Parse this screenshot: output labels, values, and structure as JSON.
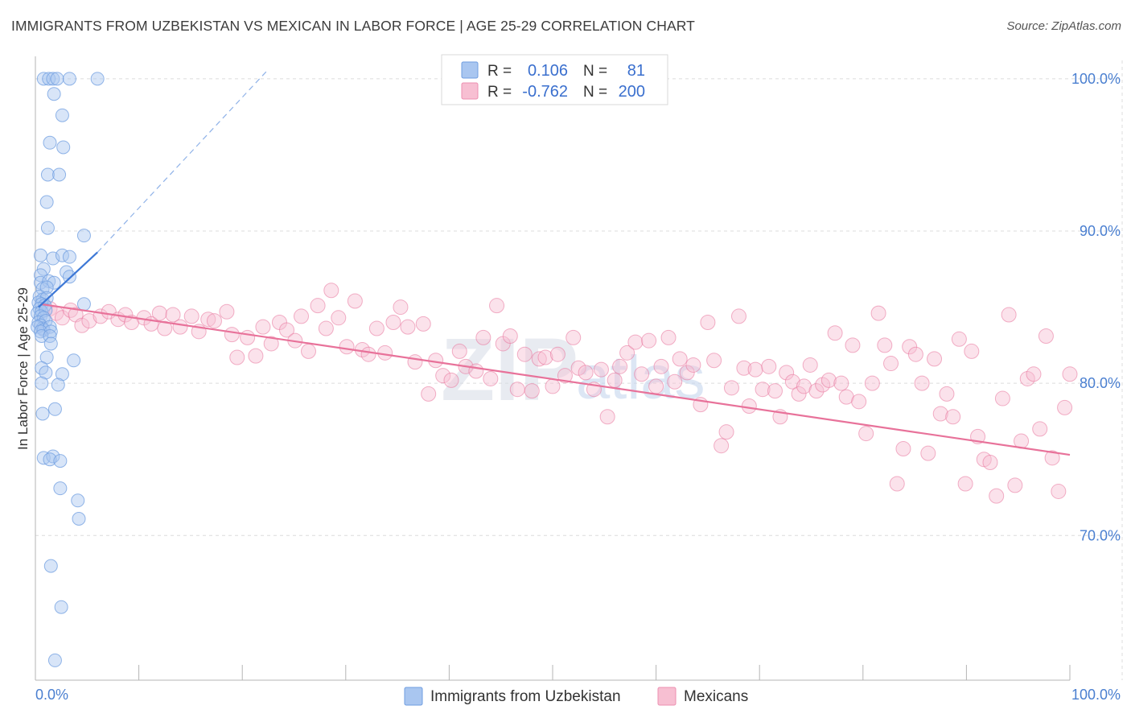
{
  "title": "IMMIGRANTS FROM UZBEKISTAN VS MEXICAN IN LABOR FORCE | AGE 25-29 CORRELATION CHART",
  "source": "Source: ZipAtlas.com",
  "watermark": {
    "zip": "ZIP",
    "atlas": "atlas"
  },
  "legend_top": {
    "rows": [
      {
        "r_label": "R =",
        "r_value": "0.106",
        "n_label": "N =",
        "n_value": "81",
        "color": "#a9c6f0",
        "stroke": "#6f9de0"
      },
      {
        "r_label": "R =",
        "r_value": "-0.762",
        "n_label": "N =",
        "n_value": "200",
        "color": "#f7bfd2",
        "stroke": "#ec8fb0"
      }
    ]
  },
  "legend_bottom": {
    "items": [
      {
        "label": "Immigrants from Uzbekistan",
        "color": "#a9c6f0",
        "stroke": "#6f9de0"
      },
      {
        "label": "Mexicans",
        "color": "#f7bfd2",
        "stroke": "#ec8fb0"
      }
    ]
  },
  "chart_data": {
    "type": "scatter",
    "title": "IMMIGRANTS FROM UZBEKISTAN VS MEXICAN IN LABOR FORCE | AGE 25-29 CORRELATION CHART",
    "xlabel": "",
    "ylabel": "In Labor Force | Age 25-29",
    "xlim": [
      0,
      100
    ],
    "ylim": [
      60.5,
      102
    ],
    "x_tick_labels": [
      "0.0%",
      "100.0%"
    ],
    "y_ticks": [
      70,
      80,
      90,
      100
    ],
    "y_tick_labels": [
      "70.0%",
      "80.0%",
      "90.0%",
      "100.0%"
    ],
    "grid": true,
    "series": [
      {
        "name": "Immigrants from Uzbekistan",
        "color": "#6f9de0",
        "fill": "#a9c6f0",
        "trend": {
          "x": [
            0.3,
            6.0
          ],
          "y": [
            85.0,
            88.6
          ]
        },
        "trend_extension": {
          "x": [
            6.0,
            22.5
          ],
          "y": [
            88.6,
            100.6
          ]
        },
        "points": [
          [
            0.8,
            100
          ],
          [
            1.3,
            100
          ],
          [
            1.7,
            100
          ],
          [
            2.1,
            100
          ],
          [
            3.3,
            100
          ],
          [
            6.0,
            100
          ],
          [
            1.8,
            99
          ],
          [
            2.6,
            97.6
          ],
          [
            1.4,
            95.8
          ],
          [
            2.7,
            95.5
          ],
          [
            1.2,
            93.7
          ],
          [
            2.3,
            93.7
          ],
          [
            1.1,
            91.9
          ],
          [
            1.2,
            90.2
          ],
          [
            4.7,
            89.7
          ],
          [
            0.5,
            88.4
          ],
          [
            1.7,
            88.2
          ],
          [
            2.6,
            88.4
          ],
          [
            3.3,
            88.3
          ],
          [
            0.8,
            87.5
          ],
          [
            0.5,
            87.1
          ],
          [
            3.0,
            87.3
          ],
          [
            3.3,
            87.0
          ],
          [
            0.5,
            86.6
          ],
          [
            1.3,
            86.7
          ],
          [
            1.8,
            86.6
          ],
          [
            0.7,
            86.2
          ],
          [
            1.1,
            86.3
          ],
          [
            0.4,
            85.7
          ],
          [
            0.7,
            85.5
          ],
          [
            1.1,
            85.6
          ],
          [
            0.3,
            85.3
          ],
          [
            0.6,
            85.2
          ],
          [
            0.9,
            85.1
          ],
          [
            0.4,
            84.9
          ],
          [
            0.2,
            84.6
          ],
          [
            0.6,
            84.7
          ],
          [
            1.0,
            84.8
          ],
          [
            4.7,
            85.2
          ],
          [
            0.5,
            84.4
          ],
          [
            0.8,
            84.3
          ],
          [
            0.3,
            84.0
          ],
          [
            1.0,
            84.1
          ],
          [
            0.5,
            83.8
          ],
          [
            0.7,
            83.6
          ],
          [
            0.2,
            83.7
          ],
          [
            0.8,
            83.5
          ],
          [
            1.4,
            83.7
          ],
          [
            0.5,
            83.4
          ],
          [
            1.5,
            83.4
          ],
          [
            0.6,
            83.1
          ],
          [
            1.4,
            83.1
          ],
          [
            1.5,
            82.6
          ],
          [
            1.1,
            81.7
          ],
          [
            3.7,
            81.5
          ],
          [
            0.6,
            81.0
          ],
          [
            1.0,
            80.7
          ],
          [
            2.6,
            80.6
          ],
          [
            0.6,
            80.0
          ],
          [
            2.2,
            79.9
          ],
          [
            1.9,
            78.3
          ],
          [
            0.7,
            78.0
          ],
          [
            0.8,
            75.1
          ],
          [
            1.7,
            75.2
          ],
          [
            1.4,
            75.0
          ],
          [
            2.4,
            74.9
          ],
          [
            2.4,
            73.1
          ],
          [
            4.1,
            72.3
          ],
          [
            4.2,
            71.1
          ],
          [
            1.5,
            68.0
          ],
          [
            2.5,
            65.3
          ],
          [
            1.9,
            61.8
          ]
        ]
      },
      {
        "name": "Mexicans",
        "color": "#e8729a",
        "fill": "#f7bfd2",
        "trend": {
          "x": [
            0.5,
            100
          ],
          "y": [
            85.2,
            75.3
          ]
        },
        "points": [
          [
            1.4,
            84.9
          ],
          [
            2.0,
            84.6
          ],
          [
            2.6,
            84.3
          ],
          [
            3.4,
            84.8
          ],
          [
            3.9,
            84.5
          ],
          [
            4.5,
            83.8
          ],
          [
            5.2,
            84.1
          ],
          [
            6.3,
            84.4
          ],
          [
            7.1,
            84.7
          ],
          [
            8.0,
            84.2
          ],
          [
            8.7,
            84.5
          ],
          [
            9.3,
            84.0
          ],
          [
            10.5,
            84.3
          ],
          [
            11.2,
            83.9
          ],
          [
            12.0,
            84.6
          ],
          [
            12.5,
            83.6
          ],
          [
            13.3,
            84.5
          ],
          [
            14.0,
            83.7
          ],
          [
            15.1,
            84.4
          ],
          [
            15.8,
            83.4
          ],
          [
            16.7,
            84.2
          ],
          [
            17.3,
            84.1
          ],
          [
            18.5,
            84.7
          ],
          [
            19.0,
            83.2
          ],
          [
            19.5,
            81.7
          ],
          [
            20.5,
            83.0
          ],
          [
            21.3,
            81.8
          ],
          [
            22.0,
            83.7
          ],
          [
            22.8,
            82.6
          ],
          [
            23.6,
            84.0
          ],
          [
            24.3,
            83.5
          ],
          [
            25.1,
            82.8
          ],
          [
            25.7,
            84.4
          ],
          [
            26.4,
            82.1
          ],
          [
            27.3,
            85.1
          ],
          [
            28.1,
            83.6
          ],
          [
            28.6,
            86.1
          ],
          [
            29.3,
            84.3
          ],
          [
            30.1,
            82.4
          ],
          [
            30.9,
            85.4
          ],
          [
            31.6,
            82.2
          ],
          [
            32.2,
            81.9
          ],
          [
            33.0,
            83.6
          ],
          [
            33.8,
            82.0
          ],
          [
            34.6,
            84.0
          ],
          [
            35.3,
            85.0
          ],
          [
            36.0,
            83.7
          ],
          [
            36.7,
            81.4
          ],
          [
            37.5,
            83.9
          ],
          [
            38.0,
            79.3
          ],
          [
            38.7,
            81.5
          ],
          [
            39.4,
            80.5
          ],
          [
            40.2,
            80.2
          ],
          [
            41.0,
            82.1
          ],
          [
            41.6,
            81.1
          ],
          [
            42.6,
            80.8
          ],
          [
            43.3,
            83.0
          ],
          [
            44.0,
            80.3
          ],
          [
            44.6,
            85.1
          ],
          [
            45.2,
            82.6
          ],
          [
            45.9,
            83.1
          ],
          [
            46.6,
            79.6
          ],
          [
            47.3,
            81.9
          ],
          [
            48.0,
            79.5
          ],
          [
            48.7,
            81.6
          ],
          [
            49.3,
            81.7
          ],
          [
            50.0,
            79.8
          ],
          [
            50.5,
            81.9
          ],
          [
            51.2,
            80.5
          ],
          [
            52.0,
            83.0
          ],
          [
            52.5,
            81.0
          ],
          [
            53.2,
            80.7
          ],
          [
            54.0,
            79.6
          ],
          [
            54.7,
            80.9
          ],
          [
            55.3,
            77.8
          ],
          [
            56.0,
            80.2
          ],
          [
            56.5,
            81.1
          ],
          [
            57.2,
            82.0
          ],
          [
            58.0,
            82.7
          ],
          [
            58.6,
            80.6
          ],
          [
            59.3,
            82.8
          ],
          [
            60.0,
            79.8
          ],
          [
            60.5,
            81.1
          ],
          [
            61.2,
            83.0
          ],
          [
            61.8,
            80.1
          ],
          [
            62.3,
            81.6
          ],
          [
            63.0,
            80.7
          ],
          [
            63.6,
            81.2
          ],
          [
            64.3,
            78.6
          ],
          [
            65.0,
            84.0
          ],
          [
            65.6,
            81.5
          ],
          [
            66.3,
            75.9
          ],
          [
            66.8,
            76.8
          ],
          [
            67.3,
            79.7
          ],
          [
            68.0,
            84.4
          ],
          [
            68.5,
            81.0
          ],
          [
            69.0,
            78.5
          ],
          [
            69.6,
            80.9
          ],
          [
            70.3,
            79.6
          ],
          [
            70.9,
            81.1
          ],
          [
            71.5,
            79.5
          ],
          [
            72.0,
            77.8
          ],
          [
            72.6,
            80.7
          ],
          [
            73.2,
            80.1
          ],
          [
            73.8,
            79.3
          ],
          [
            74.3,
            79.8
          ],
          [
            74.9,
            81.2
          ],
          [
            75.5,
            79.5
          ],
          [
            76.1,
            79.9
          ],
          [
            76.7,
            80.2
          ],
          [
            77.3,
            83.3
          ],
          [
            77.9,
            80.0
          ],
          [
            78.4,
            79.1
          ],
          [
            79.0,
            82.5
          ],
          [
            79.6,
            78.8
          ],
          [
            80.3,
            76.7
          ],
          [
            80.9,
            80.0
          ],
          [
            81.5,
            84.6
          ],
          [
            82.1,
            82.5
          ],
          [
            82.7,
            81.3
          ],
          [
            83.3,
            73.4
          ],
          [
            83.9,
            75.7
          ],
          [
            84.5,
            82.4
          ],
          [
            85.1,
            81.9
          ],
          [
            85.7,
            80.0
          ],
          [
            86.3,
            75.4
          ],
          [
            86.9,
            81.6
          ],
          [
            87.5,
            78.0
          ],
          [
            88.1,
            79.3
          ],
          [
            88.7,
            77.8
          ],
          [
            89.3,
            82.9
          ],
          [
            89.9,
            73.4
          ],
          [
            90.5,
            82.1
          ],
          [
            91.1,
            76.5
          ],
          [
            91.7,
            75.0
          ],
          [
            92.3,
            74.8
          ],
          [
            92.9,
            72.6
          ],
          [
            93.5,
            79.0
          ],
          [
            94.1,
            84.5
          ],
          [
            94.7,
            73.3
          ],
          [
            95.3,
            76.2
          ],
          [
            95.9,
            80.3
          ],
          [
            96.5,
            80.6
          ],
          [
            97.1,
            77.0
          ],
          [
            97.7,
            83.1
          ],
          [
            98.3,
            75.1
          ],
          [
            98.9,
            72.9
          ],
          [
            99.5,
            78.4
          ],
          [
            100.0,
            80.6
          ]
        ]
      }
    ]
  }
}
